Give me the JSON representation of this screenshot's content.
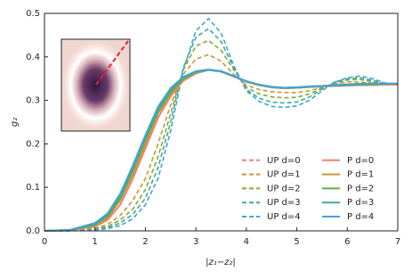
{
  "chart_data": {
    "type": "line",
    "xlabel": "|z₁−z₂|",
    "ylabel": "g₂",
    "xlim": [
      0,
      7
    ],
    "ylim": [
      0,
      0.5
    ],
    "xticks": [
      0,
      1,
      2,
      3,
      4,
      5,
      6,
      7
    ],
    "yticks": [
      {
        "value": 0,
        "label": "0.0"
      },
      0.1,
      0.2,
      0.3,
      0.4,
      0.5
    ],
    "legend": "lower right",
    "x": [
      0,
      0.5,
      1,
      1.25,
      1.5,
      1.75,
      2,
      2.25,
      2.5,
      2.75,
      3,
      3.25,
      3.5,
      3.75,
      4,
      4.25,
      4.5,
      4.75,
      5,
      5.25,
      5.5,
      5.75,
      6,
      6.25,
      6.5,
      6.75,
      7
    ],
    "series": [
      {
        "name": "UP d=0",
        "color": "#f07a94",
        "dashed": true,
        "values": [
          0,
          0.001,
          0.01,
          0.025,
          0.06,
          0.12,
          0.19,
          0.26,
          0.31,
          0.345,
          0.362,
          0.37,
          0.366,
          0.355,
          0.343,
          0.335,
          0.33,
          0.328,
          0.329,
          0.331,
          0.332,
          0.333,
          0.334,
          0.335,
          0.335,
          0.336,
          0.336
        ]
      },
      {
        "name": "UP d=1",
        "color": "#c49a3a",
        "dashed": true,
        "values": [
          0,
          0,
          0.006,
          0.015,
          0.035,
          0.07,
          0.12,
          0.2,
          0.29,
          0.36,
          0.395,
          0.405,
          0.39,
          0.36,
          0.335,
          0.325,
          0.32,
          0.318,
          0.318,
          0.322,
          0.33,
          0.338,
          0.343,
          0.342,
          0.34,
          0.337,
          0.336
        ]
      },
      {
        "name": "UP d=2",
        "color": "#86a836",
        "dashed": true,
        "values": [
          0,
          0,
          0.004,
          0.01,
          0.025,
          0.05,
          0.095,
          0.17,
          0.27,
          0.37,
          0.425,
          0.438,
          0.415,
          0.37,
          0.33,
          0.315,
          0.308,
          0.306,
          0.307,
          0.315,
          0.328,
          0.34,
          0.347,
          0.348,
          0.343,
          0.338,
          0.336
        ]
      },
      {
        "name": "UP d=3",
        "color": "#3aae96",
        "dashed": true,
        "values": [
          0,
          0,
          0.003,
          0.007,
          0.018,
          0.038,
          0.075,
          0.145,
          0.25,
          0.375,
          0.445,
          0.465,
          0.435,
          0.375,
          0.325,
          0.305,
          0.296,
          0.294,
          0.296,
          0.308,
          0.326,
          0.342,
          0.35,
          0.352,
          0.346,
          0.339,
          0.336
        ]
      },
      {
        "name": "UP d=4",
        "color": "#42a2dc",
        "dashed": true,
        "values": [
          0,
          0,
          0.002,
          0.005,
          0.012,
          0.028,
          0.06,
          0.12,
          0.23,
          0.37,
          0.46,
          0.488,
          0.455,
          0.38,
          0.322,
          0.298,
          0.286,
          0.284,
          0.287,
          0.3,
          0.322,
          0.342,
          0.352,
          0.356,
          0.35,
          0.34,
          0.336
        ]
      },
      {
        "name": "P d=0",
        "color": "#f08070",
        "dashed": false,
        "values": [
          0,
          0.001,
          0.01,
          0.025,
          0.06,
          0.12,
          0.19,
          0.26,
          0.31,
          0.345,
          0.362,
          0.37,
          0.366,
          0.355,
          0.343,
          0.335,
          0.33,
          0.328,
          0.329,
          0.331,
          0.332,
          0.333,
          0.334,
          0.335,
          0.335,
          0.336,
          0.336
        ]
      },
      {
        "name": "P d=1",
        "color": "#c49a3a",
        "dashed": false,
        "values": [
          0,
          0.001,
          0.012,
          0.03,
          0.07,
          0.13,
          0.2,
          0.27,
          0.315,
          0.348,
          0.364,
          0.37,
          0.366,
          0.355,
          0.343,
          0.335,
          0.33,
          0.328,
          0.329,
          0.331,
          0.332,
          0.334,
          0.335,
          0.336,
          0.336,
          0.337,
          0.337
        ]
      },
      {
        "name": "P d=2",
        "color": "#5cb040",
        "dashed": false,
        "values": [
          0,
          0.002,
          0.014,
          0.034,
          0.075,
          0.14,
          0.21,
          0.275,
          0.32,
          0.35,
          0.365,
          0.37,
          0.367,
          0.356,
          0.344,
          0.336,
          0.331,
          0.329,
          0.33,
          0.331,
          0.333,
          0.334,
          0.335,
          0.336,
          0.337,
          0.338,
          0.338
        ]
      },
      {
        "name": "P d=3",
        "color": "#3aae96",
        "dashed": false,
        "values": [
          0,
          0.002,
          0.016,
          0.038,
          0.08,
          0.145,
          0.215,
          0.28,
          0.325,
          0.352,
          0.366,
          0.37,
          0.367,
          0.356,
          0.344,
          0.336,
          0.331,
          0.329,
          0.33,
          0.332,
          0.333,
          0.335,
          0.336,
          0.337,
          0.338,
          0.338,
          0.338
        ]
      },
      {
        "name": "P d=4",
        "color": "#42a2dc",
        "dashed": false,
        "values": [
          0,
          0.002,
          0.018,
          0.04,
          0.085,
          0.15,
          0.22,
          0.285,
          0.328,
          0.354,
          0.367,
          0.371,
          0.367,
          0.356,
          0.344,
          0.336,
          0.331,
          0.329,
          0.33,
          0.332,
          0.333,
          0.335,
          0.337,
          0.338,
          0.339,
          0.339,
          0.339
        ]
      }
    ]
  }
}
